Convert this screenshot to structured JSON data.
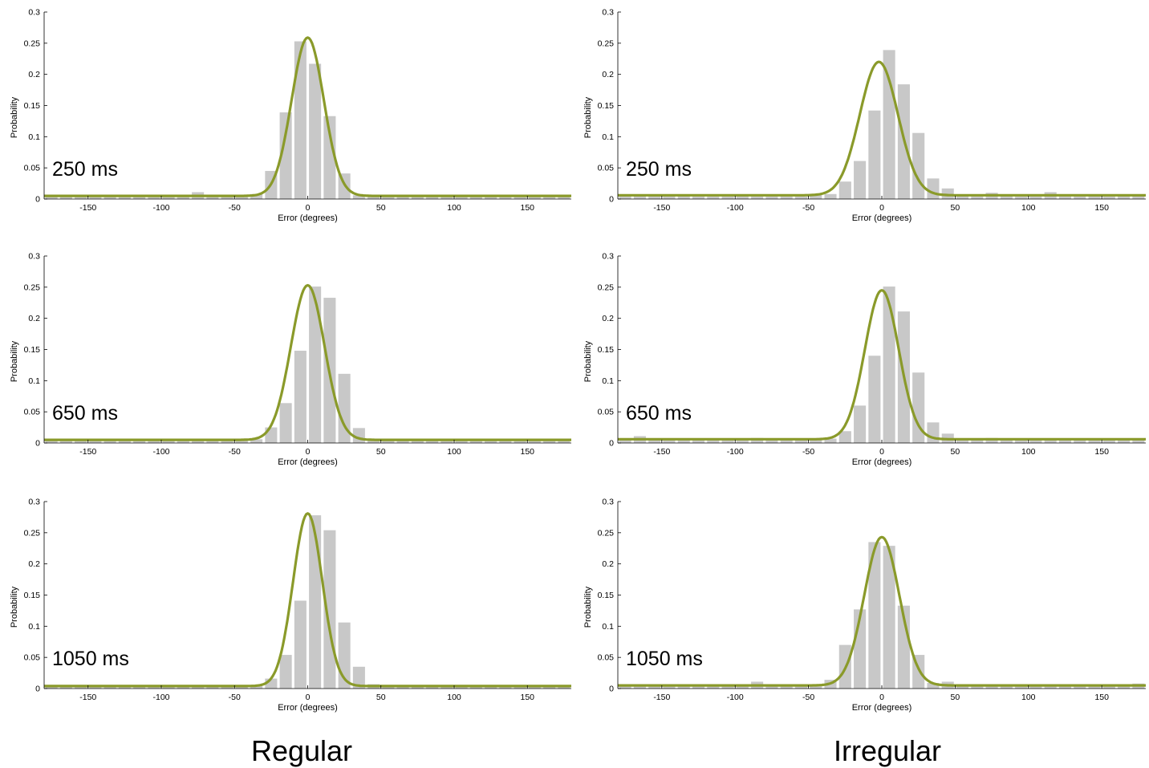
{
  "colors": {
    "bars": "#c8c8c8",
    "fit": "#8a9a2a",
    "axis": "#000000"
  },
  "column_labels": {
    "left": "Regular",
    "right": "Irregular"
  },
  "chart_data": [
    {
      "type": "bar",
      "panel_label": "250 ms",
      "xlabel": "Error (degrees)",
      "ylabel": "Probability",
      "xlim": [
        -180,
        180
      ],
      "ylim": [
        0,
        0.3
      ],
      "xticks": [
        -150,
        -100,
        -50,
        0,
        50,
        100,
        150
      ],
      "yticks": [
        0,
        0.05,
        0.1,
        0.15,
        0.2,
        0.25,
        0.3
      ],
      "grid": false,
      "bin_width": 10,
      "bin_centers": [
        -175,
        -165,
        -155,
        -145,
        -135,
        -125,
        -115,
        -105,
        -95,
        -85,
        -75,
        -65,
        -55,
        -45,
        -35,
        -25,
        -15,
        -5,
        5,
        15,
        25,
        35,
        45,
        55,
        65,
        75,
        85,
        95,
        105,
        115,
        125,
        135,
        145,
        155,
        165,
        175
      ],
      "values": [
        0.004,
        0.004,
        0.004,
        0.004,
        0.004,
        0.004,
        0.004,
        0.004,
        0.004,
        0.004,
        0.011,
        0.004,
        0.004,
        0.007,
        0.008,
        0.045,
        0.139,
        0.253,
        0.217,
        0.133,
        0.041,
        0.006,
        0.004,
        0.004,
        0.004,
        0.004,
        0.006,
        0.004,
        0.004,
        0.004,
        0.004,
        0.004,
        0.004,
        0.004,
        0.004,
        0.004
      ],
      "fit": {
        "name": "",
        "peak": 0.259,
        "mean": 0,
        "sd": 11,
        "baseline": 0.005
      }
    },
    {
      "type": "bar",
      "panel_label": "250 ms",
      "xlabel": "Error (degrees)",
      "ylabel": "Probability",
      "xlim": [
        -180,
        180
      ],
      "ylim": [
        0,
        0.3
      ],
      "xticks": [
        -150,
        -100,
        -50,
        0,
        50,
        100,
        150
      ],
      "yticks": [
        0,
        0.05,
        0.1,
        0.15,
        0.2,
        0.25,
        0.3
      ],
      "grid": false,
      "bin_width": 10,
      "bin_centers": [
        -175,
        -165,
        -155,
        -145,
        -135,
        -125,
        -115,
        -105,
        -95,
        -85,
        -75,
        -65,
        -55,
        -45,
        -35,
        -25,
        -15,
        -5,
        5,
        15,
        25,
        35,
        45,
        55,
        65,
        75,
        85,
        95,
        105,
        115,
        125,
        135,
        145,
        155,
        165,
        175
      ],
      "values": [
        0.005,
        0.005,
        0.005,
        0.005,
        0.005,
        0.004,
        0.004,
        0.004,
        0.005,
        0.004,
        0.004,
        0.004,
        0.004,
        0.006,
        0.008,
        0.028,
        0.061,
        0.142,
        0.239,
        0.184,
        0.106,
        0.033,
        0.017,
        0.005,
        0.004,
        0.01,
        0.005,
        0.004,
        0.004,
        0.011,
        0.004,
        0.004,
        0.005,
        0.004,
        0.005,
        0.005
      ],
      "fit": {
        "name": "",
        "peak": 0.22,
        "mean": -2,
        "sd": 13,
        "baseline": 0.006
      }
    },
    {
      "type": "bar",
      "panel_label": "650 ms",
      "xlabel": "Error (degrees)",
      "ylabel": "Probability",
      "xlim": [
        -180,
        180
      ],
      "ylim": [
        0,
        0.3
      ],
      "xticks": [
        -150,
        -100,
        -50,
        0,
        50,
        100,
        150
      ],
      "yticks": [
        0,
        0.05,
        0.1,
        0.15,
        0.2,
        0.25,
        0.3
      ],
      "grid": false,
      "bin_width": 10,
      "bin_centers": [
        -175,
        -165,
        -155,
        -145,
        -135,
        -125,
        -115,
        -105,
        -95,
        -85,
        -75,
        -65,
        -55,
        -45,
        -35,
        -25,
        -15,
        -5,
        5,
        15,
        25,
        35,
        45,
        55,
        65,
        75,
        85,
        95,
        105,
        115,
        125,
        135,
        145,
        155,
        165,
        175
      ],
      "values": [
        0.004,
        0.004,
        0.006,
        0.004,
        0.004,
        0.004,
        0.004,
        0.004,
        0.004,
        0.004,
        0.007,
        0.004,
        0.004,
        0.004,
        0.006,
        0.025,
        0.064,
        0.148,
        0.251,
        0.233,
        0.111,
        0.024,
        0.007,
        0.004,
        0.004,
        0.004,
        0.004,
        0.004,
        0.004,
        0.004,
        0.004,
        0.004,
        0.004,
        0.004,
        0.004,
        0.004
      ],
      "fit": {
        "name": "",
        "peak": 0.253,
        "mean": 0,
        "sd": 11.5,
        "baseline": 0.005
      }
    },
    {
      "type": "bar",
      "panel_label": "650 ms",
      "xlabel": "Error (degrees)",
      "ylabel": "Probability",
      "xlim": [
        -180,
        180
      ],
      "ylim": [
        0,
        0.3
      ],
      "xticks": [
        -150,
        -100,
        -50,
        0,
        50,
        100,
        150
      ],
      "yticks": [
        0,
        0.05,
        0.1,
        0.15,
        0.2,
        0.25,
        0.3
      ],
      "grid": false,
      "bin_width": 10,
      "bin_centers": [
        -175,
        -165,
        -155,
        -145,
        -135,
        -125,
        -115,
        -105,
        -95,
        -85,
        -75,
        -65,
        -55,
        -45,
        -35,
        -25,
        -15,
        -5,
        5,
        15,
        25,
        35,
        45,
        55,
        65,
        75,
        85,
        95,
        105,
        115,
        125,
        135,
        145,
        155,
        165,
        175
      ],
      "values": [
        0.005,
        0.011,
        0.005,
        0.005,
        0.005,
        0.005,
        0.005,
        0.005,
        0.005,
        0.008,
        0.005,
        0.005,
        0.005,
        0.005,
        0.007,
        0.019,
        0.06,
        0.14,
        0.251,
        0.211,
        0.113,
        0.033,
        0.015,
        0.006,
        0.005,
        0.008,
        0.005,
        0.005,
        0.007,
        0.005,
        0.005,
        0.005,
        0.005,
        0.005,
        0.005,
        0.005
      ],
      "fit": {
        "name": "",
        "peak": 0.245,
        "mean": 0,
        "sd": 11.5,
        "baseline": 0.006
      }
    },
    {
      "type": "bar",
      "panel_label": "1050 ms",
      "xlabel": "Error (degrees)",
      "ylabel": "Probability",
      "xlim": [
        -180,
        180
      ],
      "ylim": [
        0,
        0.3
      ],
      "xticks": [
        -150,
        -100,
        -50,
        0,
        50,
        100,
        150
      ],
      "yticks": [
        0,
        0.05,
        0.1,
        0.15,
        0.2,
        0.25,
        0.3
      ],
      "grid": false,
      "bin_width": 10,
      "bin_centers": [
        -175,
        -165,
        -155,
        -145,
        -135,
        -125,
        -115,
        -105,
        -95,
        -85,
        -75,
        -65,
        -55,
        -45,
        -35,
        -25,
        -15,
        -5,
        5,
        15,
        25,
        35,
        45,
        55,
        65,
        75,
        85,
        95,
        105,
        115,
        125,
        135,
        145,
        155,
        165,
        175
      ],
      "values": [
        0.004,
        0.004,
        0.004,
        0.004,
        0.004,
        0.004,
        0.004,
        0.004,
        0.004,
        0.004,
        0.004,
        0.004,
        0.004,
        0.004,
        0.006,
        0.016,
        0.054,
        0.141,
        0.278,
        0.254,
        0.106,
        0.035,
        0.007,
        0.004,
        0.004,
        0.004,
        0.004,
        0.004,
        0.004,
        0.004,
        0.004,
        0.004,
        0.004,
        0.004,
        0.004,
        0.004
      ],
      "fit": {
        "name": "",
        "peak": 0.281,
        "mean": 0,
        "sd": 10,
        "baseline": 0.004
      }
    },
    {
      "type": "bar",
      "panel_label": "1050 ms",
      "xlabel": "Error (degrees)",
      "ylabel": "Probability",
      "xlim": [
        -180,
        180
      ],
      "ylim": [
        0,
        0.3
      ],
      "xticks": [
        -150,
        -100,
        -50,
        0,
        50,
        100,
        150
      ],
      "yticks": [
        0,
        0.05,
        0.1,
        0.15,
        0.2,
        0.25,
        0.3
      ],
      "grid": false,
      "bin_width": 10,
      "bin_centers": [
        -175,
        -165,
        -155,
        -145,
        -135,
        -125,
        -115,
        -105,
        -95,
        -85,
        -75,
        -65,
        -55,
        -45,
        -35,
        -25,
        -15,
        -5,
        5,
        15,
        25,
        35,
        45,
        55,
        65,
        75,
        85,
        95,
        105,
        115,
        125,
        135,
        145,
        155,
        165,
        175
      ],
      "values": [
        0.004,
        0.004,
        0.004,
        0.004,
        0.004,
        0.004,
        0.004,
        0.004,
        0.006,
        0.011,
        0.004,
        0.004,
        0.004,
        0.004,
        0.014,
        0.07,
        0.127,
        0.235,
        0.229,
        0.133,
        0.054,
        0.009,
        0.011,
        0.004,
        0.004,
        0.004,
        0.004,
        0.004,
        0.004,
        0.004,
        0.004,
        0.004,
        0.004,
        0.004,
        0.004,
        0.008
      ],
      "fit": {
        "name": "",
        "peak": 0.243,
        "mean": 0,
        "sd": 12,
        "baseline": 0.005
      }
    }
  ]
}
